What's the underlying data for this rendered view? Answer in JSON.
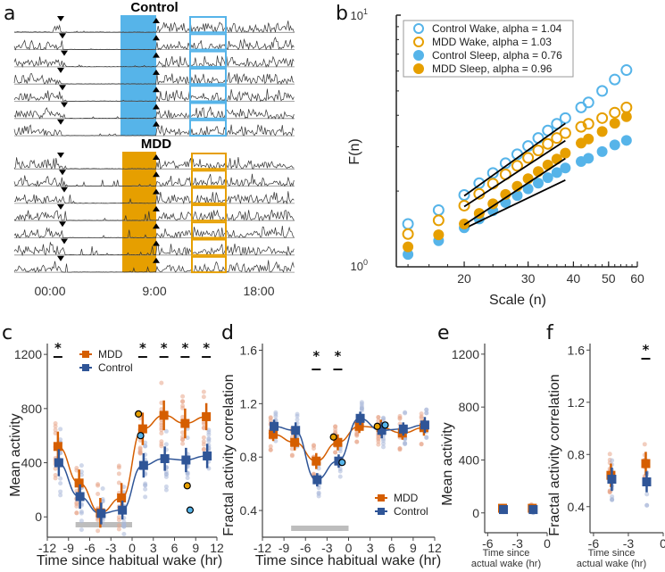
{
  "figure": {
    "panels": [
      "a",
      "b",
      "c",
      "d",
      "e",
      "f"
    ]
  },
  "colors": {
    "control_light": "#56B4E9",
    "mdd_light": "#E69F00",
    "mdd_dark": "#D55E00",
    "control_dark": "#2F5597",
    "sleep_bar": "#BDBDBD"
  },
  "chart_data": [
    {
      "panel": "a",
      "type": "line",
      "title": "Activity actograms",
      "groups": [
        {
          "name": "Control",
          "rows": 7,
          "color": "#56B4E9"
        },
        {
          "name": "MDD",
          "rows": 7,
          "color": "#E69F00"
        }
      ],
      "x_ticks": [
        "00:00",
        "9:00",
        "18:00"
      ],
      "markers": {
        "sleep_onset": "down-triangle",
        "wake": "up-triangle"
      },
      "highlight_boxes": "wake window after habitual wake"
    },
    {
      "panel": "b",
      "type": "scatter",
      "xscale": "log",
      "yscale": "log",
      "xlabel": "Scale (n)",
      "ylabel": "F(n)",
      "x_ticks": [
        20,
        30,
        40,
        50,
        60
      ],
      "y_ticks": [
        "10^0",
        "10^1"
      ],
      "xlim": [
        13,
        60
      ],
      "ylim": [
        1,
        10
      ],
      "legend_position": "top-left",
      "fit_range": [
        20,
        38
      ],
      "x": [
        14,
        17,
        20,
        22,
        24,
        26,
        28,
        30,
        32,
        34,
        36,
        38,
        42,
        44,
        48,
        52,
        56
      ],
      "series": [
        {
          "name": "Control Wake, alpha = 1.04",
          "style": "open",
          "color": "#56B4E9",
          "values": [
            1.48,
            1.68,
            1.93,
            2.15,
            2.36,
            2.58,
            2.8,
            3.02,
            3.25,
            3.48,
            3.7,
            3.9,
            4.3,
            4.5,
            5.0,
            5.55,
            6.05
          ]
        },
        {
          "name": "MDD Wake, alpha = 1.03",
          "style": "open",
          "color": "#E69F00",
          "values": [
            1.35,
            1.53,
            1.75,
            1.95,
            2.14,
            2.33,
            2.52,
            2.71,
            2.9,
            3.08,
            3.25,
            3.4,
            3.6,
            3.7,
            3.9,
            4.1,
            4.3
          ]
        },
        {
          "name": "Control Sleep, alpha = 0.76",
          "style": "filled",
          "color": "#56B4E9",
          "values": [
            1.12,
            1.27,
            1.43,
            1.55,
            1.67,
            1.8,
            1.92,
            2.04,
            2.15,
            2.26,
            2.37,
            2.47,
            2.62,
            2.7,
            2.87,
            3.05,
            3.18
          ]
        },
        {
          "name": "MDD Sleep, alpha = 0.96",
          "style": "filled",
          "color": "#E69F00",
          "values": [
            1.2,
            1.34,
            1.48,
            1.63,
            1.78,
            1.94,
            2.09,
            2.24,
            2.39,
            2.54,
            2.68,
            2.83,
            3.1,
            3.22,
            3.45,
            3.72,
            3.95
          ]
        }
      ]
    },
    {
      "panel": "c",
      "type": "scatter",
      "xlabel": "Time since habitual wake (hr)",
      "ylabel": "Mean activity",
      "xlim": [
        -12,
        12
      ],
      "ylim": [
        -150,
        1280
      ],
      "x_ticks": [
        -12,
        -9,
        -6,
        -3,
        0,
        3,
        6,
        9,
        12
      ],
      "y_ticks": [
        0,
        400,
        800,
        1200
      ],
      "legend": [
        "MDD",
        "Control"
      ],
      "legend_position": "top-left",
      "significance_x": [
        -10.5,
        1.5,
        4.5,
        7.5,
        10.5
      ],
      "sleep_bar": [
        -8,
        0
      ],
      "x": [
        -10.5,
        -7.5,
        -4.5,
        -1.5,
        1.5,
        4.5,
        7.5,
        10.5
      ],
      "series": [
        {
          "name": "MDD",
          "color": "#D55E00",
          "mean": [
            520,
            250,
            30,
            140,
            650,
            750,
            690,
            740
          ],
          "err": [
            110,
            100,
            110,
            110,
            120,
            110,
            110,
            100
          ]
        },
        {
          "name": "Control",
          "color": "#2F5597",
          "mean": [
            400,
            150,
            25,
            50,
            380,
            430,
            420,
            450
          ],
          "err": [
            100,
            90,
            80,
            70,
            90,
            90,
            90,
            90
          ]
        }
      ],
      "highlighted_points": [
        {
          "x": 0.9,
          "y": 760,
          "color": "#E69F00"
        },
        {
          "x": 1.2,
          "y": 600,
          "color": "#56B4E9"
        },
        {
          "x": 7.8,
          "y": 230,
          "color": "#E69F00"
        },
        {
          "x": 8.2,
          "y": 50,
          "color": "#56B4E9"
        }
      ]
    },
    {
      "panel": "d",
      "type": "scatter",
      "xlabel": "Time since habitual wake (hr)",
      "ylabel": "Fractal activity correlation",
      "xlim": [
        -12,
        12
      ],
      "ylim": [
        0.2,
        1.65
      ],
      "x_ticks": [
        -12,
        -9,
        -6,
        -3,
        0,
        3,
        6,
        9,
        12
      ],
      "y_ticks": [
        0.4,
        0.8,
        1.2,
        1.6
      ],
      "legend": [
        "MDD",
        "Control"
      ],
      "legend_position": "bottom-right",
      "significance_x": [
        -4.5,
        -1.5
      ],
      "sleep_bar": [
        -8,
        0
      ],
      "x": [
        -10.5,
        -7.5,
        -4.5,
        -1.5,
        1.5,
        4.5,
        7.5,
        10.5
      ],
      "series": [
        {
          "name": "MDD",
          "color": "#D55E00",
          "mean": [
            0.97,
            0.91,
            0.77,
            0.91,
            1.03,
            1.02,
            0.98,
            1.02
          ],
          "err": [
            0.05,
            0.06,
            0.06,
            0.06,
            0.05,
            0.06,
            0.05,
            0.06
          ]
        },
        {
          "name": "Control",
          "color": "#2F5597",
          "mean": [
            1.03,
            1.0,
            0.63,
            0.77,
            1.09,
            1.0,
            1.01,
            1.04
          ],
          "err": [
            0.05,
            0.06,
            0.05,
            0.05,
            0.05,
            0.06,
            0.05,
            0.06
          ]
        }
      ],
      "highlighted_points": [
        {
          "x": -2.1,
          "y": 0.95,
          "color": "#E69F00"
        },
        {
          "x": -0.9,
          "y": 0.76,
          "color": "#56B4E9"
        },
        {
          "x": 4.0,
          "y": 1.03,
          "color": "#E69F00"
        },
        {
          "x": 5.1,
          "y": 1.04,
          "color": "#56B4E9"
        }
      ]
    },
    {
      "panel": "e",
      "type": "scatter",
      "xlabel": "Time since actual wake (hr)",
      "ylabel": "Mean activity",
      "xlim": [
        -6.3,
        0
      ],
      "ylim": [
        -150,
        1280
      ],
      "x_ticks": [
        -6,
        -3,
        0
      ],
      "y_ticks": [
        0,
        400,
        800,
        1200
      ],
      "x": [
        -4.5,
        -1.5
      ],
      "series": [
        {
          "name": "MDD",
          "color": "#D55E00",
          "mean": [
            35,
            35
          ],
          "err": [
            20,
            20
          ]
        },
        {
          "name": "Control",
          "color": "#2F5597",
          "mean": [
            25,
            25
          ],
          "err": [
            15,
            15
          ]
        }
      ]
    },
    {
      "panel": "f",
      "type": "scatter",
      "xlabel": "Time since actual wake (hr)",
      "ylabel": "Fractal activity correlation",
      "xlim": [
        -6.3,
        0
      ],
      "ylim": [
        0.2,
        1.65
      ],
      "x_ticks": [
        -6,
        -3,
        0
      ],
      "y_ticks": [
        0.4,
        0.8,
        1.2,
        1.6
      ],
      "significance_x": [
        -1.5
      ],
      "x": [
        -4.5,
        -1.5
      ],
      "series": [
        {
          "name": "MDD",
          "color": "#D55E00",
          "mean": [
            0.64,
            0.73
          ],
          "err": [
            0.09,
            0.09
          ]
        },
        {
          "name": "Control",
          "color": "#2F5597",
          "mean": [
            0.61,
            0.59
          ],
          "err": [
            0.09,
            0.08
          ]
        }
      ]
    }
  ],
  "text": {
    "a_label": "a",
    "b_label": "b",
    "c_label": "c",
    "d_label": "d",
    "e_label": "e",
    "f_label": "f",
    "control_title": "Control",
    "mdd_title": "MDD",
    "a_ticks": [
      "00:00",
      "9:00",
      "18:00"
    ],
    "b_ylabel": "F(n)",
    "b_xlabel": "Scale (n)",
    "b_ytick_top_base": "10",
    "b_ytick_top_exp": "1",
    "b_ytick_bot_base": "10",
    "b_ytick_bot_exp": "0",
    "c_ylabel": "Mean activity",
    "d_ylabel": "Fractal activity correlation",
    "e_ylabel": "Mean activity",
    "f_ylabel": "Fractal activity correlation",
    "cd_xlabel": "Time since habitual wake (hr)",
    "ef_xlabel_line1": "Time since",
    "ef_xlabel_line2": "actual wake (hr)",
    "legend_mdd": "MDD",
    "legend_control": "Control",
    "star": "*"
  }
}
